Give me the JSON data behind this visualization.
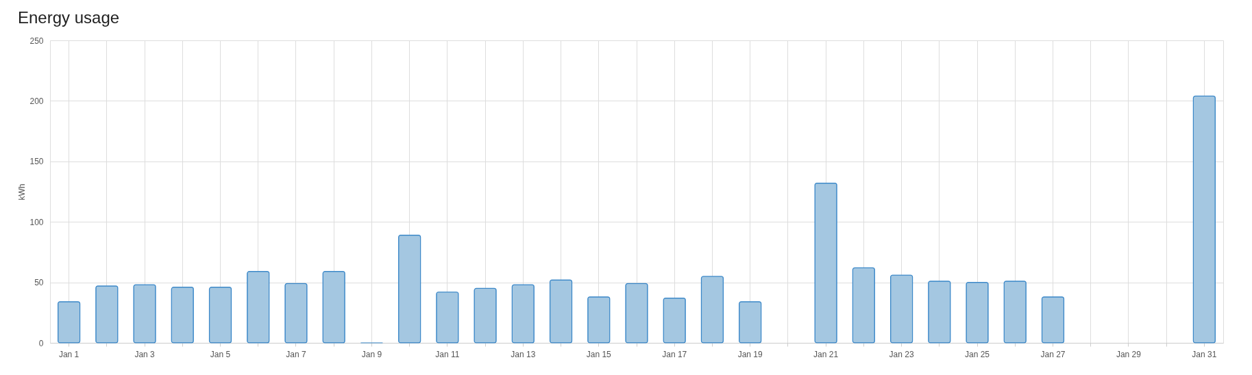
{
  "chart_data": {
    "type": "bar",
    "title": "Energy usage",
    "ylabel": "kWh",
    "categories": [
      "Jan 1",
      null,
      "Jan 3",
      null,
      "Jan 5",
      null,
      "Jan 7",
      null,
      "Jan 9",
      null,
      "Jan 11",
      null,
      "Jan 13",
      null,
      "Jan 15",
      null,
      "Jan 17",
      null,
      "Jan 19",
      null,
      "Jan 21",
      null,
      "Jan 23",
      null,
      "Jan 25",
      null,
      "Jan 27",
      null,
      "Jan 29",
      null,
      "Jan 31"
    ],
    "series": [
      {
        "color": "#a4c7e1",
        "values": [
          34,
          47,
          48,
          46,
          46,
          59,
          49,
          59,
          0,
          89,
          42,
          45,
          48,
          52,
          38,
          49,
          37,
          55,
          34,
          null,
          132,
          62,
          56,
          51,
          50,
          51,
          38,
          null,
          null,
          null,
          204
        ]
      }
    ],
    "ylim": [
      0,
      250
    ],
    "yticks": [
      0,
      50,
      100,
      150,
      200,
      250
    ],
    "grid": true
  }
}
